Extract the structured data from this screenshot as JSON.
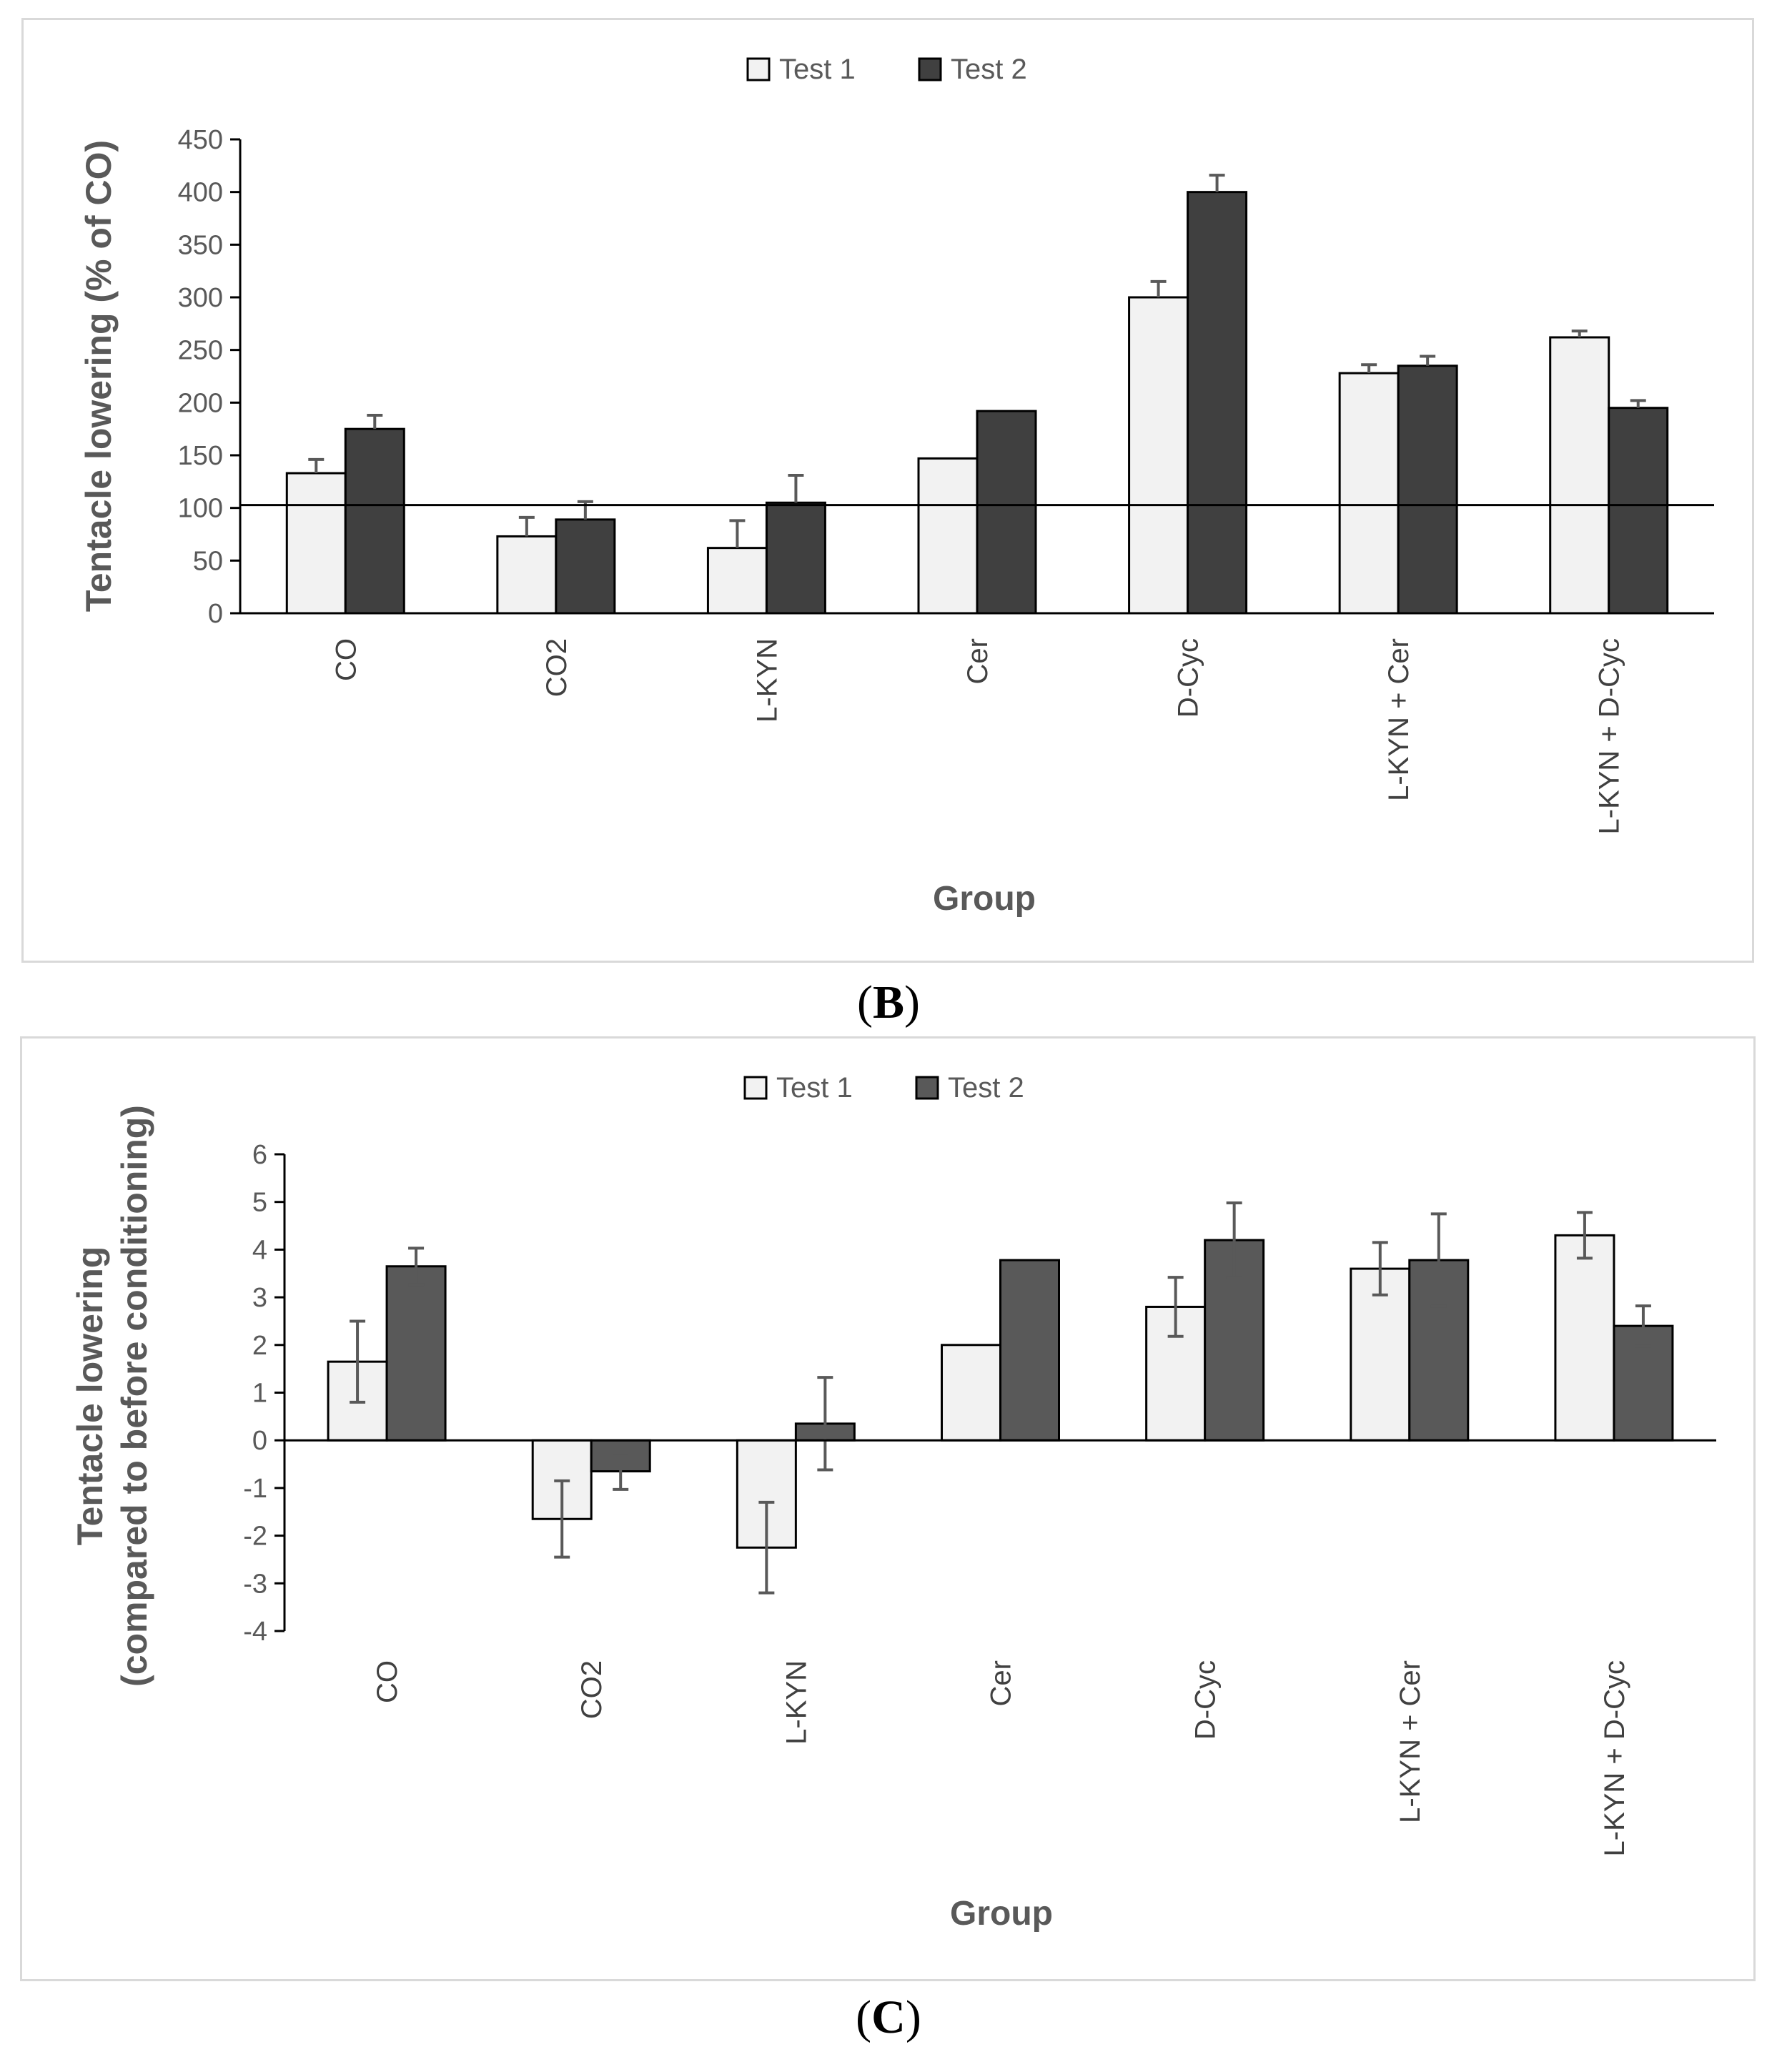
{
  "chart_data": [
    {
      "type": "bar",
      "panel": "B",
      "title": "",
      "xlabel": "Group",
      "ylabel": "Tentacle lowering (% of CO)",
      "ylim": [
        0,
        450
      ],
      "yticks": [
        0,
        50,
        100,
        150,
        200,
        250,
        300,
        350,
        400,
        450
      ],
      "reference_line": 100,
      "categories": [
        "CO",
        "CO2",
        "L-KYN",
        "Cer",
        "D-Cyc",
        "L-KYN + Cer",
        "L-KYN + D-Cyc"
      ],
      "series": [
        {
          "name": "Test 1",
          "color": "#f2f2f2",
          "values": [
            133,
            73,
            62,
            147,
            300,
            228,
            262
          ],
          "errors": [
            13,
            18,
            26,
            0,
            15,
            8,
            6
          ]
        },
        {
          "name": "Test 2",
          "color": "#404040",
          "values": [
            175,
            89,
            105,
            192,
            400,
            235,
            195
          ],
          "errors": [
            13,
            17,
            26,
            0,
            16,
            9,
            7
          ]
        }
      ],
      "legend": "top-center"
    },
    {
      "type": "bar",
      "panel": "C",
      "title": "",
      "xlabel": "Group",
      "ylabel": [
        "Tentacle lowering",
        "(compared to before conditioning)"
      ],
      "ylim": [
        -4,
        6
      ],
      "yticks": [
        -4,
        -3,
        -2,
        -1,
        0,
        1,
        2,
        3,
        4,
        5,
        6
      ],
      "categories": [
        "CO",
        "CO2",
        "L-KYN",
        "Cer",
        "D-Cyc",
        "L-KYN + Cer",
        "L-KYN + D-Cyc"
      ],
      "series": [
        {
          "name": "Test 1",
          "color": "#f2f2f2",
          "values": [
            1.65,
            -1.65,
            -2.25,
            2.0,
            2.8,
            3.6,
            4.3
          ],
          "errors": [
            0.85,
            0.8,
            0.95,
            0,
            0.62,
            0.55,
            0.48
          ]
        },
        {
          "name": "Test 2",
          "color": "#595959",
          "values": [
            3.65,
            -0.65,
            0.35,
            3.78,
            4.2,
            3.78,
            2.4
          ],
          "errors": [
            0.38,
            0.38,
            0.97,
            0,
            0.78,
            0.97,
            0.42
          ]
        }
      ],
      "legend": "top-center"
    }
  ],
  "captions": {
    "B": "B",
    "C": "C"
  }
}
